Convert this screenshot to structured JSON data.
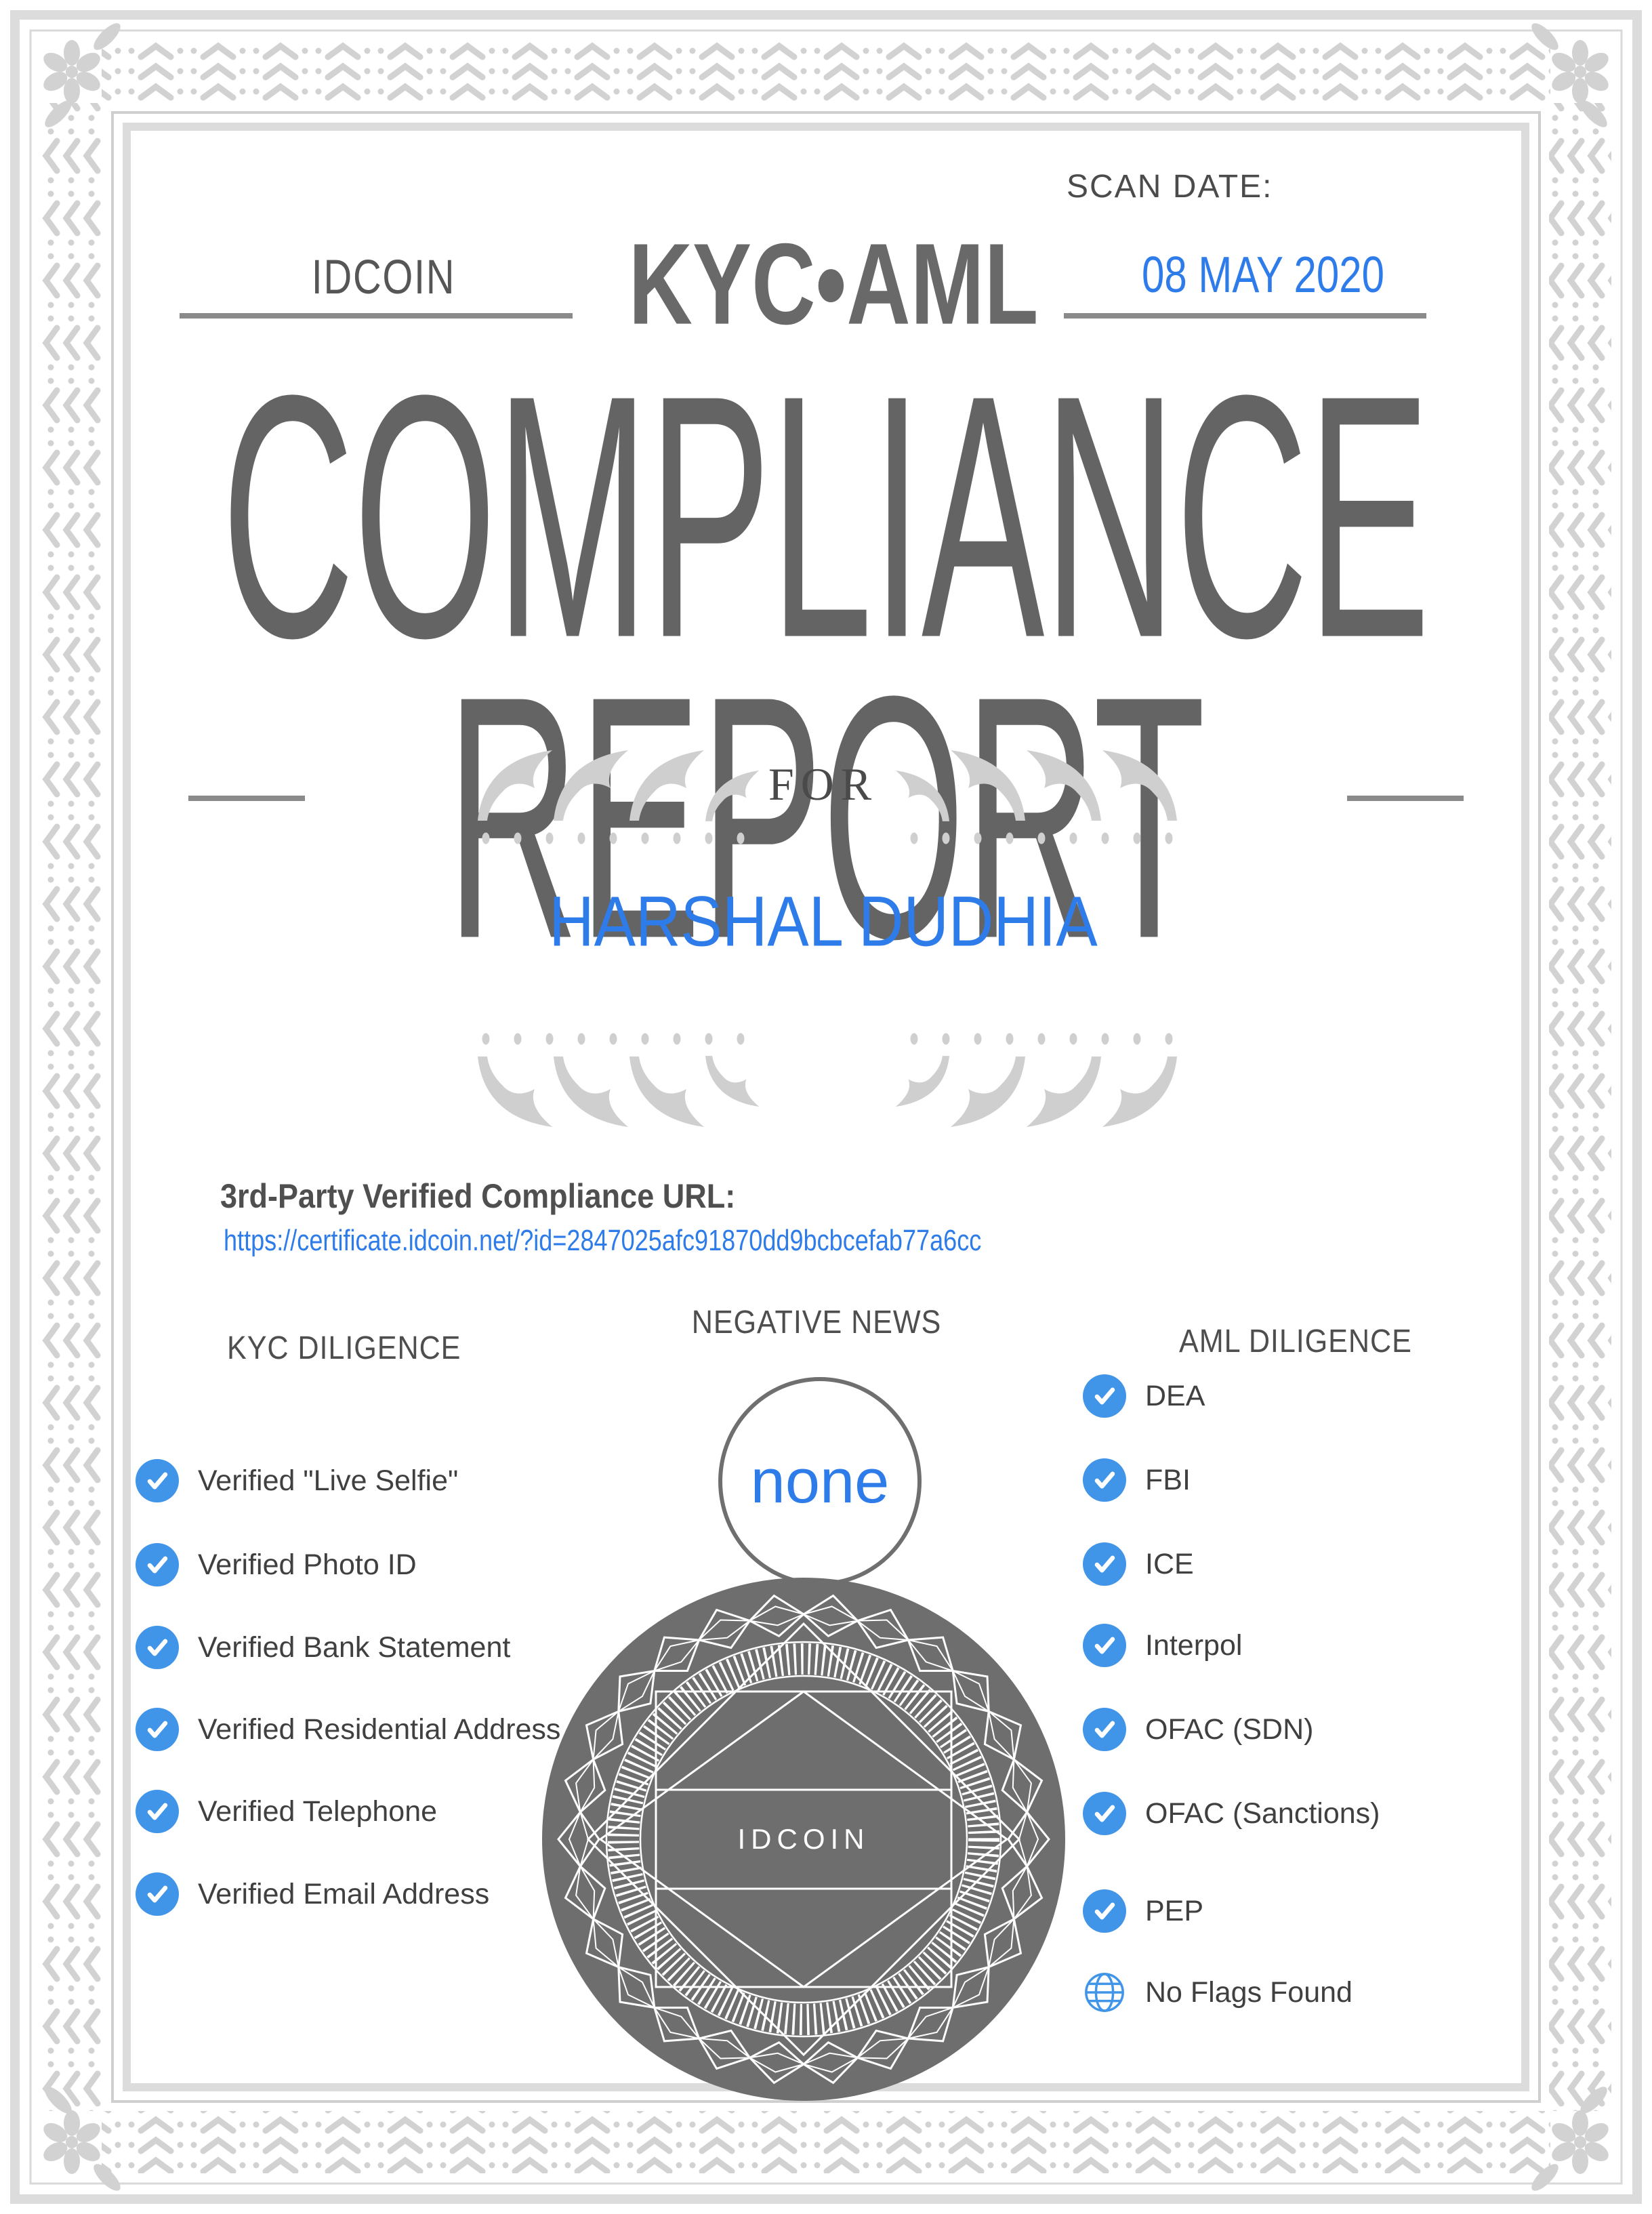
{
  "header": {
    "brand": "IDCOIN",
    "product": "KYC•AML",
    "scan_date_label": "SCAN DATE:",
    "scan_date": "08 MAY 2020"
  },
  "title": {
    "line1": "COMPLIANCE",
    "line2": "REPORT"
  },
  "recipient": {
    "for_label": "FOR",
    "name": "HARSHAL DUDHIA"
  },
  "verification": {
    "url_label": "3rd-Party Verified Compliance URL:",
    "url": "https://certificate.idcoin.net/?id=2847025afc91870dd9bcbcefab77a6cc"
  },
  "kyc": {
    "heading": "KYC DILIGENCE",
    "items": [
      "Verified \"Live Selfie\"",
      "Verified Photo ID",
      "Verified Bank Statement",
      "Verified Residential Address",
      "Verified Telephone",
      "Verified Email Address"
    ]
  },
  "negative_news": {
    "heading": "NEGATIVE NEWS",
    "value": "none"
  },
  "aml": {
    "heading": "AML DILIGENCE",
    "items": [
      "DEA",
      "FBI",
      "ICE",
      "Interpol",
      "OFAC (SDN)",
      "OFAC (Sanctions)",
      "PEP"
    ],
    "no_flags_label": "No Flags Found"
  },
  "seal": {
    "label": "IDCOIN"
  },
  "icons": {
    "verified": "check-circle-icon",
    "no_flags": "globe-icon"
  },
  "colors": {
    "accent_blue": "#2e7ce9",
    "check_blue": "#4095e9",
    "seal_gray": "#6e6e6e",
    "title_gray": "#646464",
    "ornament_gray": "#d2d2d2",
    "rule_gray": "#8a8a8a"
  }
}
